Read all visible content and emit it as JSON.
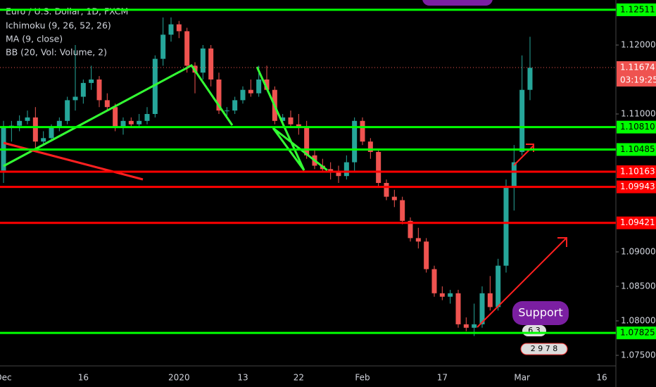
{
  "chart_data": {
    "type": "candlestick",
    "title": "Euro / U.S. Dollar, 1D, FXCM",
    "indicators": [
      "Ichimoku (9, 26, 52, 26)",
      "MA (9, close)",
      "BB (20, Vol: Volume, 2)"
    ],
    "categories": [
      "Dec",
      null,
      null,
      null,
      null,
      null,
      null,
      null,
      null,
      null,
      "16",
      null,
      null,
      null,
      null,
      null,
      null,
      null,
      null,
      null,
      null,
      null,
      "2020",
      null,
      null,
      null,
      null,
      null,
      null,
      null,
      "13",
      null,
      null,
      null,
      null,
      null,
      null,
      "22",
      null,
      null,
      null,
      null,
      null,
      null,
      null,
      "Feb",
      null,
      null,
      null,
      null,
      null,
      null,
      null,
      null,
      null,
      "17",
      null,
      null,
      null,
      null,
      null,
      null,
      null,
      null,
      null,
      "Mar",
      null,
      null,
      null,
      null,
      null,
      null,
      null,
      null,
      null,
      "16"
    ],
    "open": [
      1.1018,
      1.108,
      1.1083,
      1.109,
      1.1095,
      1.106,
      1.1065,
      1.108,
      1.109,
      1.112,
      1.1125,
      1.1145,
      1.115,
      1.112,
      1.111,
      1.108,
      1.109,
      1.1085,
      1.109,
      1.11,
      1.118,
      1.1215,
      1.123,
      1.122,
      1.117,
      1.116,
      1.1195,
      1.115,
      1.1105,
      1.1105,
      1.112,
      1.1135,
      1.113,
      1.115,
      1.1135,
      1.109,
      1.1095,
      1.1085,
      1.108,
      1.104,
      1.1025,
      1.102,
      1.1015,
      1.101,
      1.103,
      1.109,
      1.106,
      1.1045,
      1.1,
      1.098,
      1.0975,
      1.0945,
      1.092,
      1.0915,
      1.0875,
      1.084,
      1.0835,
      1.084,
      1.0795,
      1.079,
      1.0795,
      1.084,
      1.082,
      1.088,
      1.0995,
      1.1045,
      1.1135,
      null,
      null,
      null,
      null,
      null,
      null,
      null,
      null,
      null
    ],
    "high": [
      1.109,
      1.109,
      1.1098,
      1.1105,
      1.111,
      1.1075,
      1.1085,
      1.1095,
      1.1125,
      1.12,
      1.115,
      1.117,
      1.1155,
      1.113,
      1.1115,
      1.1095,
      1.1095,
      1.11,
      1.111,
      1.1185,
      1.124,
      1.124,
      1.1235,
      1.1225,
      1.1175,
      1.12,
      1.12,
      1.116,
      1.111,
      1.1125,
      1.114,
      1.115,
      1.117,
      1.117,
      1.114,
      1.11,
      1.1105,
      1.11,
      1.109,
      1.105,
      1.1035,
      1.103,
      1.1025,
      1.104,
      1.1095,
      1.1095,
      1.1065,
      1.105,
      1.1005,
      1.099,
      1.098,
      1.095,
      1.0935,
      1.092,
      1.088,
      1.085,
      1.0845,
      1.0845,
      1.0805,
      1.0825,
      1.085,
      1.0865,
      1.089,
      1.1005,
      1.1055,
      1.1185,
      1.1212,
      null,
      null,
      null,
      null,
      null,
      null,
      null,
      null,
      null
    ],
    "low": [
      1.1,
      1.106,
      1.1075,
      1.1085,
      1.1045,
      1.1055,
      1.106,
      1.1075,
      1.1085,
      1.1105,
      1.1115,
      1.1135,
      1.111,
      1.1105,
      1.1075,
      1.107,
      1.108,
      1.108,
      1.1085,
      1.1095,
      1.117,
      1.1205,
      1.121,
      1.116,
      1.113,
      1.115,
      1.114,
      1.11,
      1.1095,
      1.11,
      1.1115,
      1.1125,
      1.1125,
      1.1135,
      1.1085,
      1.1085,
      1.108,
      1.107,
      1.1035,
      1.102,
      1.1015,
      1.1005,
      1.1,
      1.1005,
      1.1015,
      1.1055,
      1.1035,
      1.0995,
      1.0975,
      1.0965,
      1.094,
      1.0915,
      1.0905,
      1.087,
      1.0835,
      1.083,
      1.0825,
      1.079,
      1.0785,
      1.0778,
      1.079,
      1.0815,
      1.0815,
      1.087,
      1.096,
      1.104,
      1.112,
      null,
      null,
      null,
      null,
      null,
      null,
      null,
      null,
      null
    ],
    "close": [
      1.108,
      1.1083,
      1.109,
      1.1095,
      1.106,
      1.1065,
      1.108,
      1.109,
      1.112,
      1.1125,
      1.1145,
      1.115,
      1.112,
      1.111,
      1.108,
      1.109,
      1.1085,
      1.109,
      1.11,
      1.118,
      1.1215,
      1.123,
      1.122,
      1.117,
      1.116,
      1.1195,
      1.115,
      1.1105,
      1.1105,
      1.112,
      1.1135,
      1.113,
      1.115,
      1.1135,
      1.109,
      1.1095,
      1.1085,
      1.108,
      1.104,
      1.1025,
      1.102,
      1.1015,
      1.101,
      1.103,
      1.109,
      1.106,
      1.1045,
      1.1,
      1.098,
      1.0975,
      1.0945,
      1.092,
      1.0915,
      1.0875,
      1.084,
      1.0835,
      1.084,
      1.0795,
      1.079,
      1.0795,
      1.084,
      1.082,
      1.088,
      1.0995,
      1.103,
      1.1135,
      1.1167,
      null,
      null,
      null,
      null,
      null,
      null,
      null,
      null,
      null
    ],
    "up_color": "#26a69a",
    "down_color": "#ef5350",
    "ylim": [
      1.07347,
      1.12653
    ],
    "yticks": [
      {
        "value": 1.12,
        "label": "1.12000"
      },
      {
        "value": 1.11,
        "label": "1.11000"
      },
      {
        "value": 1.09,
        "label": "1.09000"
      },
      {
        "value": 1.085,
        "label": "1.08500"
      },
      {
        "value": 1.08,
        "label": "1.08000"
      },
      {
        "value": 1.075,
        "label": "1.07500"
      }
    ],
    "levels": [
      {
        "value": 1.12511,
        "label": "1.12511",
        "color": "#00ff00"
      },
      {
        "value": 1.1081,
        "label": "1.10810",
        "color": "#00ff00"
      },
      {
        "value": 1.10485,
        "label": "1.10485",
        "color": "#00ff00"
      },
      {
        "value": 1.10163,
        "label": "1.10163",
        "color": "#ff0000"
      },
      {
        "value": 1.09943,
        "label": "1.09943",
        "color": "#ff0000"
      },
      {
        "value": 1.09421,
        "label": "1.09421",
        "color": "#ff0000"
      },
      {
        "value": 1.07825,
        "label": "1.07825",
        "color": "#00ff00"
      }
    ],
    "last_price": {
      "value": 1.11674,
      "label": "1.11674",
      "countdown": "03:19:25"
    },
    "annotation": "Support",
    "badges": [
      "6 3",
      "2 9 7 8"
    ]
  }
}
